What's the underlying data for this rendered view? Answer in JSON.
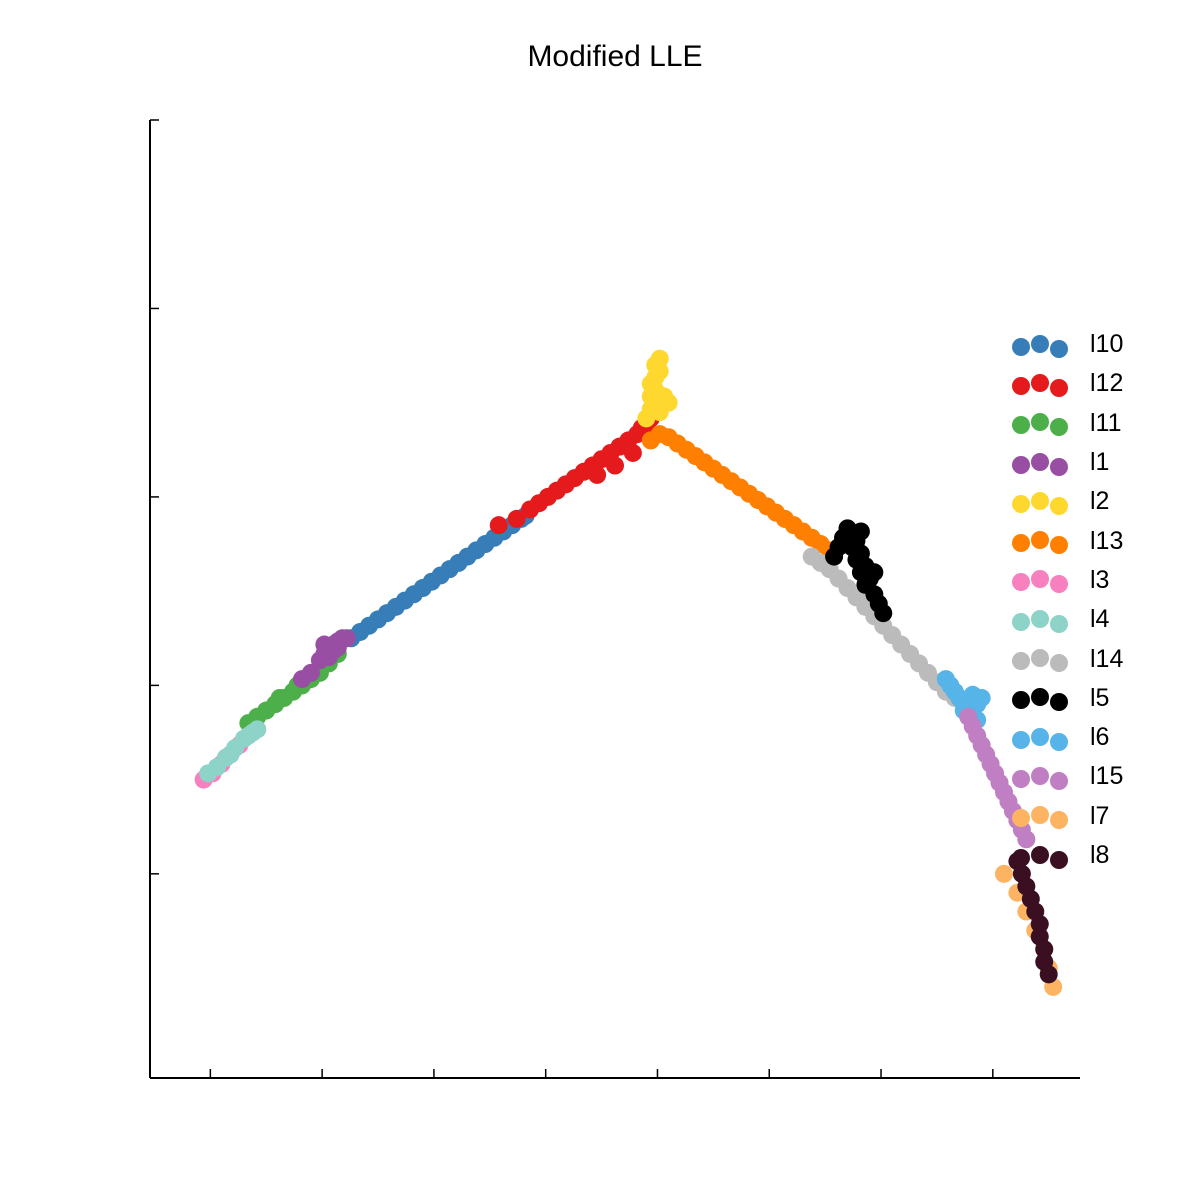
{
  "chart_data": {
    "type": "scatter",
    "title": "Modified LLE",
    "xlabel": "",
    "ylabel": "",
    "grid": false,
    "legend_position": "right",
    "series": [
      {
        "name": "l10",
        "color": "#377eb8",
        "points": [
          [
            0.33,
            0.45
          ],
          [
            0.35,
            0.47
          ],
          [
            0.37,
            0.49
          ],
          [
            0.39,
            0.51
          ],
          [
            0.41,
            0.53
          ],
          [
            0.43,
            0.55
          ],
          [
            0.45,
            0.57
          ],
          [
            0.47,
            0.59
          ],
          [
            0.49,
            0.61
          ],
          [
            0.51,
            0.63
          ],
          [
            0.53,
            0.65
          ],
          [
            0.55,
            0.67
          ],
          [
            0.57,
            0.69
          ],
          [
            0.59,
            0.71
          ],
          [
            0.61,
            0.73
          ],
          [
            0.63,
            0.75
          ],
          [
            0.65,
            0.77
          ],
          [
            0.67,
            0.79
          ],
          [
            0.69,
            0.81
          ],
          [
            0.71,
            0.83
          ],
          [
            0.72,
            0.84
          ]
        ]
      },
      {
        "name": "l12",
        "color": "#e41a1c",
        "points": [
          [
            0.66,
            0.81
          ],
          [
            0.7,
            0.83
          ],
          [
            0.73,
            0.86
          ],
          [
            0.75,
            0.88
          ],
          [
            0.77,
            0.9
          ],
          [
            0.79,
            0.92
          ],
          [
            0.81,
            0.94
          ],
          [
            0.83,
            0.96
          ],
          [
            0.85,
            0.98
          ],
          [
            0.87,
            1.0
          ],
          [
            0.89,
            1.02
          ],
          [
            0.91,
            1.04
          ],
          [
            0.93,
            1.06
          ],
          [
            0.95,
            1.08
          ],
          [
            0.97,
            1.1
          ],
          [
            0.98,
            1.12
          ],
          [
            0.92,
            1.0
          ],
          [
            0.88,
            0.97
          ],
          [
            0.96,
            1.04
          ],
          [
            1.0,
            1.15
          ],
          [
            0.99,
            1.13
          ]
        ]
      },
      {
        "name": "l11",
        "color": "#4daf4a",
        "points": [
          [
            0.1,
            0.18
          ],
          [
            0.12,
            0.2
          ],
          [
            0.14,
            0.22
          ],
          [
            0.16,
            0.24
          ],
          [
            0.18,
            0.26
          ],
          [
            0.2,
            0.28
          ],
          [
            0.22,
            0.3
          ],
          [
            0.24,
            0.32
          ],
          [
            0.26,
            0.34
          ],
          [
            0.28,
            0.37
          ],
          [
            0.3,
            0.4
          ],
          [
            0.17,
            0.26
          ],
          [
            0.21,
            0.3
          ],
          [
            0.25,
            0.34
          ]
        ]
      },
      {
        "name": "l1",
        "color": "#984ea3",
        "points": [
          [
            0.22,
            0.32
          ],
          [
            0.24,
            0.34
          ],
          [
            0.26,
            0.38
          ],
          [
            0.27,
            0.4
          ],
          [
            0.28,
            0.42
          ],
          [
            0.29,
            0.43
          ],
          [
            0.3,
            0.44
          ],
          [
            0.31,
            0.45
          ],
          [
            0.3,
            0.42
          ],
          [
            0.28,
            0.39
          ],
          [
            0.27,
            0.43
          ],
          [
            0.29,
            0.41
          ],
          [
            0.32,
            0.45
          ]
        ]
      },
      {
        "name": "l2",
        "color": "#fed82f",
        "points": [
          [
            0.99,
            1.15
          ],
          [
            1.0,
            1.18
          ],
          [
            1.01,
            1.2
          ],
          [
            1.0,
            1.22
          ],
          [
            1.01,
            1.24
          ],
          [
            1.0,
            1.26
          ],
          [
            1.01,
            1.28
          ],
          [
            1.02,
            1.3
          ],
          [
            1.01,
            1.32
          ],
          [
            1.02,
            1.34
          ],
          [
            1.03,
            1.22
          ],
          [
            1.02,
            1.17
          ],
          [
            1.04,
            1.2
          ]
        ]
      },
      {
        "name": "l13",
        "color": "#ff7f00",
        "points": [
          [
            1.0,
            1.08
          ],
          [
            1.02,
            1.1
          ],
          [
            1.04,
            1.09
          ],
          [
            1.06,
            1.07
          ],
          [
            1.08,
            1.05
          ],
          [
            1.1,
            1.03
          ],
          [
            1.12,
            1.01
          ],
          [
            1.14,
            0.99
          ],
          [
            1.16,
            0.97
          ],
          [
            1.18,
            0.95
          ],
          [
            1.2,
            0.93
          ],
          [
            1.22,
            0.91
          ],
          [
            1.24,
            0.89
          ],
          [
            1.26,
            0.87
          ],
          [
            1.28,
            0.85
          ],
          [
            1.3,
            0.83
          ],
          [
            1.32,
            0.81
          ],
          [
            1.34,
            0.79
          ],
          [
            1.36,
            0.77
          ],
          [
            1.38,
            0.75
          ],
          [
            1.4,
            0.73
          ]
        ]
      },
      {
        "name": "l3",
        "color": "#f781bf",
        "points": [
          [
            0.0,
            0.0
          ],
          [
            0.02,
            0.02
          ],
          [
            0.04,
            0.05
          ],
          [
            0.06,
            0.08
          ],
          [
            0.08,
            0.11
          ],
          [
            0.05,
            0.07
          ]
        ]
      },
      {
        "name": "l4",
        "color": "#8dd3c7",
        "points": [
          [
            0.01,
            0.02
          ],
          [
            0.03,
            0.04
          ],
          [
            0.05,
            0.07
          ],
          [
            0.07,
            0.1
          ],
          [
            0.09,
            0.13
          ],
          [
            0.1,
            0.14
          ],
          [
            0.11,
            0.15
          ],
          [
            0.12,
            0.16
          ],
          [
            0.06,
            0.08
          ]
        ]
      },
      {
        "name": "l14",
        "color": "#bbbbbb",
        "points": [
          [
            1.36,
            0.71
          ],
          [
            1.38,
            0.69
          ],
          [
            1.4,
            0.67
          ],
          [
            1.42,
            0.64
          ],
          [
            1.44,
            0.61
          ],
          [
            1.46,
            0.58
          ],
          [
            1.48,
            0.55
          ],
          [
            1.5,
            0.52
          ],
          [
            1.52,
            0.49
          ],
          [
            1.54,
            0.46
          ],
          [
            1.56,
            0.43
          ],
          [
            1.58,
            0.4
          ],
          [
            1.6,
            0.37
          ],
          [
            1.62,
            0.34
          ],
          [
            1.64,
            0.31
          ],
          [
            1.66,
            0.28
          ],
          [
            1.68,
            0.26
          ]
        ]
      },
      {
        "name": "l5",
        "color": "#000000",
        "points": [
          [
            1.44,
            0.8
          ],
          [
            1.45,
            0.78
          ],
          [
            1.46,
            0.76
          ],
          [
            1.45,
            0.74
          ],
          [
            1.47,
            0.72
          ],
          [
            1.46,
            0.7
          ],
          [
            1.48,
            0.68
          ],
          [
            1.47,
            0.66
          ],
          [
            1.49,
            0.64
          ],
          [
            1.48,
            0.62
          ],
          [
            1.5,
            0.59
          ],
          [
            1.51,
            0.56
          ],
          [
            1.52,
            0.53
          ],
          [
            1.43,
            0.77
          ],
          [
            1.42,
            0.74
          ],
          [
            1.41,
            0.71
          ],
          [
            1.5,
            0.66
          ],
          [
            1.47,
            0.79
          ]
        ]
      },
      {
        "name": "l6",
        "color": "#56b4e9",
        "points": [
          [
            1.67,
            0.3
          ],
          [
            1.68,
            0.28
          ],
          [
            1.69,
            0.26
          ],
          [
            1.7,
            0.24
          ],
          [
            1.71,
            0.25
          ],
          [
            1.72,
            0.27
          ],
          [
            1.73,
            0.24
          ],
          [
            1.74,
            0.26
          ],
          [
            1.72,
            0.21
          ],
          [
            1.73,
            0.19
          ],
          [
            1.7,
            0.22
          ],
          [
            1.66,
            0.32
          ]
        ]
      },
      {
        "name": "l15",
        "color": "#bf7fc2",
        "points": [
          [
            1.71,
            0.2
          ],
          [
            1.72,
            0.17
          ],
          [
            1.73,
            0.14
          ],
          [
            1.74,
            0.11
          ],
          [
            1.75,
            0.08
          ],
          [
            1.76,
            0.05
          ],
          [
            1.77,
            0.02
          ],
          [
            1.78,
            -0.01
          ],
          [
            1.79,
            -0.04
          ],
          [
            1.8,
            -0.07
          ],
          [
            1.81,
            -0.1
          ],
          [
            1.82,
            -0.13
          ],
          [
            1.83,
            -0.16
          ],
          [
            1.84,
            -0.19
          ]
        ]
      },
      {
        "name": "l7",
        "color": "#fdb462",
        "points": [
          [
            1.79,
            -0.3
          ],
          [
            1.82,
            -0.36
          ],
          [
            1.84,
            -0.42
          ],
          [
            1.86,
            -0.48
          ],
          [
            1.88,
            -0.54
          ],
          [
            1.89,
            -0.6
          ],
          [
            1.9,
            -0.66
          ]
        ]
      },
      {
        "name": "l8",
        "color": "#3a0f21",
        "points": [
          [
            1.82,
            -0.26
          ],
          [
            1.83,
            -0.3
          ],
          [
            1.84,
            -0.34
          ],
          [
            1.85,
            -0.38
          ],
          [
            1.86,
            -0.42
          ],
          [
            1.87,
            -0.46
          ],
          [
            1.87,
            -0.5
          ],
          [
            1.88,
            -0.54
          ],
          [
            1.88,
            -0.58
          ],
          [
            1.89,
            -0.62
          ]
        ]
      }
    ],
    "xlim": [
      -0.12,
      1.96
    ],
    "ylim": [
      -0.95,
      2.1
    ],
    "x_ticks": [
      0.015,
      0.265,
      0.515,
      0.765,
      1.015,
      1.265,
      1.515,
      1.765
    ],
    "y_ticks": [
      -0.3,
      0.3,
      0.9,
      1.5,
      2.1
    ],
    "x_tick_labels": [],
    "y_tick_labels": []
  }
}
